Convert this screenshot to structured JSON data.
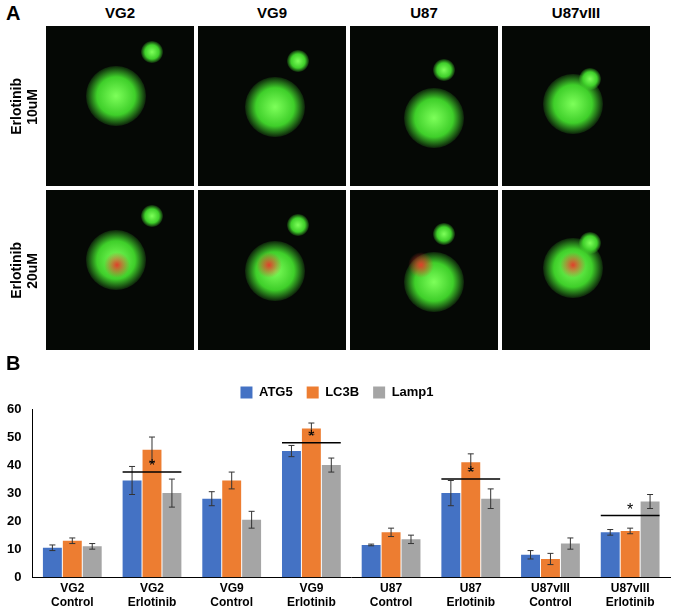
{
  "panel_labels": [
    "A",
    "B"
  ],
  "image_panel": {
    "columns": [
      "VG2",
      "VG9",
      "U87",
      "U87vIII"
    ],
    "rows": [
      "Erlotinib 10uM",
      "Erlotinib 20uM"
    ]
  },
  "chart_data": {
    "type": "bar",
    "categories": [
      "VG2 Control",
      "VG2 Erlotinib",
      "VG9 Control",
      "VG9 Erlotinib",
      "U87 Control",
      "U87 Erlotinib",
      "U87vIII Control",
      "U87vIII Erlotinib"
    ],
    "series": [
      {
        "name": "ATG5",
        "color": "#4472c4",
        "values": [
          10.5,
          34.5,
          28,
          45,
          11.5,
          30,
          8,
          16
        ],
        "errors": [
          1,
          5,
          2.5,
          2,
          0.3,
          4.5,
          1.5,
          1
        ]
      },
      {
        "name": "LC3B",
        "color": "#ed7d31",
        "values": [
          13,
          45.5,
          34.5,
          53,
          16,
          41,
          6.5,
          16.5
        ],
        "errors": [
          1,
          4.5,
          3,
          2,
          1.5,
          3,
          2,
          1
        ]
      },
      {
        "name": "Lamp1",
        "color": "#a5a5a5",
        "values": [
          11,
          30,
          20.5,
          40,
          13.5,
          28,
          12,
          27
        ],
        "errors": [
          1,
          5,
          3,
          2.5,
          1.5,
          3.5,
          2,
          2.5
        ]
      }
    ],
    "ylim": [
      0,
      60
    ],
    "yticks": [
      0,
      10,
      20,
      30,
      40,
      50,
      60
    ],
    "grid": false,
    "legend": "top",
    "annotations": [
      {
        "text": "*",
        "category": "VG2 Erlotinib",
        "y": 37.5
      },
      {
        "text": "*",
        "category": "VG9 Erlotinib",
        "y": 48
      },
      {
        "text": "*",
        "category": "U87 Erlotinib",
        "y": 35
      },
      {
        "text": "*",
        "category": "U87vIII Erlotinib",
        "y": 22
      }
    ]
  }
}
